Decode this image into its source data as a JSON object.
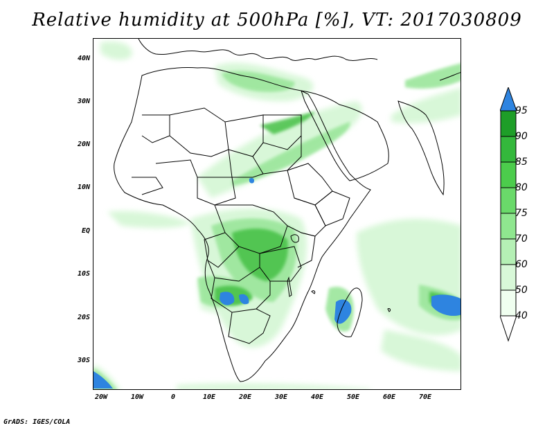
{
  "title": "Relative humidity at 500hPa [%], VT: 2017030809",
  "footer": "GrADS: IGES/COLA",
  "lat_labels": [
    "40N",
    "30N",
    "20N",
    "10N",
    "EQ",
    "10S",
    "20S",
    "30S"
  ],
  "lon_labels": [
    "20W",
    "10W",
    "0",
    "10E",
    "20E",
    "30E",
    "40E",
    "50E",
    "60E",
    "70E"
  ],
  "colorbar": {
    "levels": [
      "95",
      "90",
      "85",
      "80",
      "75",
      "70",
      "60",
      "50",
      "40"
    ],
    "colors": [
      "#2e8fe0",
      "#1e9e28",
      "#34b83c",
      "#4ccc4c",
      "#6ad96a",
      "#8fe68f",
      "#b5f0b5",
      "#d8f8d8",
      "#f0fff0",
      "#ffffff"
    ]
  },
  "map": {
    "region": "Africa and surroundings",
    "lon_range": [
      -22,
      80
    ],
    "lat_range": [
      -38,
      44
    ]
  }
}
